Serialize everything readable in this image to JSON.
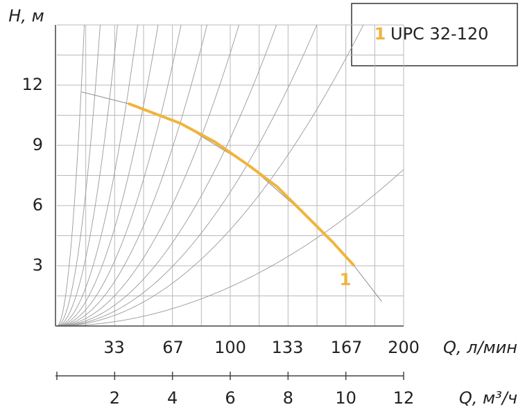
{
  "chart_data": {
    "type": "line",
    "y_label": "H, м",
    "x2_label": "Q, л/мин",
    "x_label": "Q, м³/ч",
    "xlim": [
      0,
      12
    ],
    "xticks": [
      2,
      4,
      6,
      8,
      10,
      12
    ],
    "x2lim": [
      0,
      200
    ],
    "x2ticks": [
      33,
      67,
      100,
      133,
      167,
      200
    ],
    "ylim": [
      0,
      15
    ],
    "yticks": [
      3,
      6,
      9,
      12
    ],
    "x_minor_grid": [
      1,
      3,
      5,
      7,
      9,
      11
    ],
    "y_minor_grid": [
      1.5,
      4.5,
      7.5,
      10.5,
      13.5
    ],
    "grid": true,
    "reference_curves_h_at_12": [
      2393,
      960,
      490,
      276,
      176,
      117,
      80,
      54.4,
      37.4,
      26.7,
      19.2,
      7.8
    ],
    "full_curve": {
      "color": "#8a8a8a",
      "x": [
        0.86,
        2.5,
        4.27,
        6.67,
        8.59,
        10.27,
        11.23
      ],
      "values": [
        11.66,
        11.07,
        10.1,
        7.97,
        5.55,
        3.03,
        1.24
      ]
    },
    "series": [
      {
        "name": "UPC 32-120",
        "label": "1",
        "color": "#f0b43c",
        "x": [
          2.5,
          4.27,
          5.47,
          6.67,
          7.63,
          8.59,
          9.55,
          10.27
        ],
        "values": [
          11.07,
          10.1,
          9.17,
          7.97,
          6.93,
          5.55,
          4.17,
          3.03
        ]
      }
    ]
  }
}
